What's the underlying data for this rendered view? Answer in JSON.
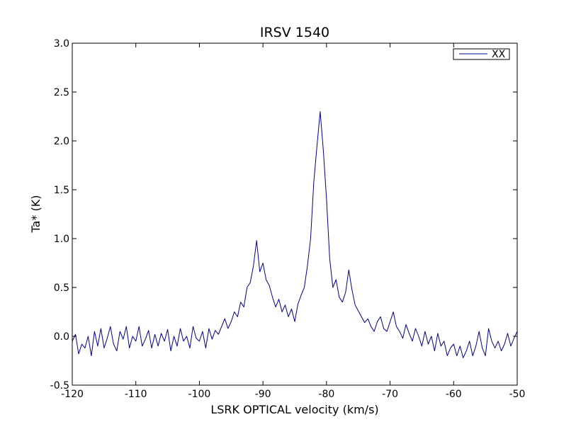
{
  "chart_data": {
    "type": "line",
    "title": "IRSV 1540",
    "xlabel": "LSRK OPTICAL velocity (km/s)",
    "ylabel": "Ta* (K)",
    "xlim": [
      -120,
      -50
    ],
    "ylim": [
      -0.5,
      3.0
    ],
    "xticks": [
      -120,
      -110,
      -100,
      -90,
      -80,
      -70,
      -60,
      -50
    ],
    "xtick_labels": [
      "-120",
      "-110",
      "-100",
      "-90",
      "-80",
      "-70",
      "-60",
      "-50"
    ],
    "yticks": [
      -0.5,
      0.0,
      0.5,
      1.0,
      1.5,
      2.0,
      2.5,
      3.0
    ],
    "ytick_labels": [
      "-0.5",
      "0.0",
      "0.5",
      "1.0",
      "1.5",
      "2.0",
      "2.5",
      "3.0"
    ],
    "grid": false,
    "legend_position": "top-right",
    "series": [
      {
        "name": "XX",
        "color": "#00008b",
        "x": [
          -120,
          -119.5,
          -119,
          -118.5,
          -118,
          -117.5,
          -117,
          -116.5,
          -116,
          -115.5,
          -115,
          -114.5,
          -114,
          -113.5,
          -113,
          -112.5,
          -112,
          -111.5,
          -111,
          -110.5,
          -110,
          -109.5,
          -109,
          -108.5,
          -108,
          -107.5,
          -107,
          -106.5,
          -106,
          -105.5,
          -105,
          -104.5,
          -104,
          -103.5,
          -103,
          -102.5,
          -102,
          -101.5,
          -101,
          -100.5,
          -100,
          -99.5,
          -99,
          -98.5,
          -98,
          -97.5,
          -97,
          -96.5,
          -96,
          -95.5,
          -95,
          -94.5,
          -94,
          -93.5,
          -93,
          -92.5,
          -92,
          -91.5,
          -91,
          -90.5,
          -90,
          -89.5,
          -89,
          -88.5,
          -88,
          -87.5,
          -87,
          -86.5,
          -86,
          -85.5,
          -85,
          -84.5,
          -84,
          -83.5,
          -83,
          -82.5,
          -82,
          -81.5,
          -81,
          -80.5,
          -80,
          -79.5,
          -79,
          -78.5,
          -78,
          -77.5,
          -77,
          -76.5,
          -76,
          -75.5,
          -75,
          -74.5,
          -74,
          -73.5,
          -73,
          -72.5,
          -72,
          -71.5,
          -71,
          -70.5,
          -70,
          -69.5,
          -69,
          -68.5,
          -68,
          -67.5,
          -67,
          -66.5,
          -66,
          -65.5,
          -65,
          -64.5,
          -64,
          -63.5,
          -63,
          -62.5,
          -62,
          -61.5,
          -61,
          -60.5,
          -60,
          -59.5,
          -59,
          -58.5,
          -58,
          -57.5,
          -57,
          -56.5,
          -56,
          -55.5,
          -55,
          -54.5,
          -54,
          -53.5,
          -53,
          -52.5,
          -52,
          -51.5,
          -51,
          -50.5,
          -50
        ],
        "y": [
          -0.05,
          0.02,
          -0.18,
          -0.08,
          -0.12,
          0.0,
          -0.2,
          0.05,
          -0.1,
          0.08,
          -0.12,
          -0.02,
          0.1,
          -0.08,
          -0.15,
          0.05,
          -0.03,
          0.1,
          -0.12,
          0.0,
          -0.05,
          0.1,
          -0.1,
          -0.03,
          0.06,
          -0.12,
          0.02,
          -0.1,
          0.03,
          -0.05,
          0.07,
          -0.15,
          0.0,
          -0.1,
          0.08,
          -0.05,
          0.0,
          -0.12,
          0.1,
          -0.02,
          -0.05,
          0.05,
          -0.12,
          0.08,
          -0.03,
          0.06,
          0.02,
          0.1,
          0.18,
          0.08,
          0.15,
          0.25,
          0.2,
          0.35,
          0.3,
          0.5,
          0.55,
          0.72,
          0.98,
          0.66,
          0.75,
          0.58,
          0.52,
          0.4,
          0.3,
          0.38,
          0.25,
          0.32,
          0.2,
          0.28,
          0.15,
          0.33,
          0.42,
          0.5,
          0.72,
          1.0,
          1.58,
          1.95,
          2.3,
          1.9,
          1.4,
          0.8,
          0.5,
          0.58,
          0.4,
          0.35,
          0.45,
          0.68,
          0.48,
          0.32,
          0.26,
          0.2,
          0.14,
          0.18,
          0.1,
          0.05,
          0.15,
          0.2,
          0.08,
          0.05,
          0.15,
          0.25,
          0.1,
          0.05,
          -0.02,
          0.12,
          0.03,
          -0.05,
          0.08,
          0.0,
          -0.1,
          0.05,
          -0.08,
          0.0,
          -0.15,
          0.03,
          -0.1,
          -0.05,
          -0.2,
          -0.12,
          -0.08,
          -0.2,
          -0.1,
          -0.22,
          -0.15,
          -0.05,
          -0.2,
          -0.1,
          0.05,
          -0.12,
          -0.2,
          0.08,
          -0.05,
          -0.12,
          -0.05,
          -0.15,
          -0.08,
          0.03,
          -0.1,
          -0.02,
          0.05
        ]
      }
    ]
  }
}
